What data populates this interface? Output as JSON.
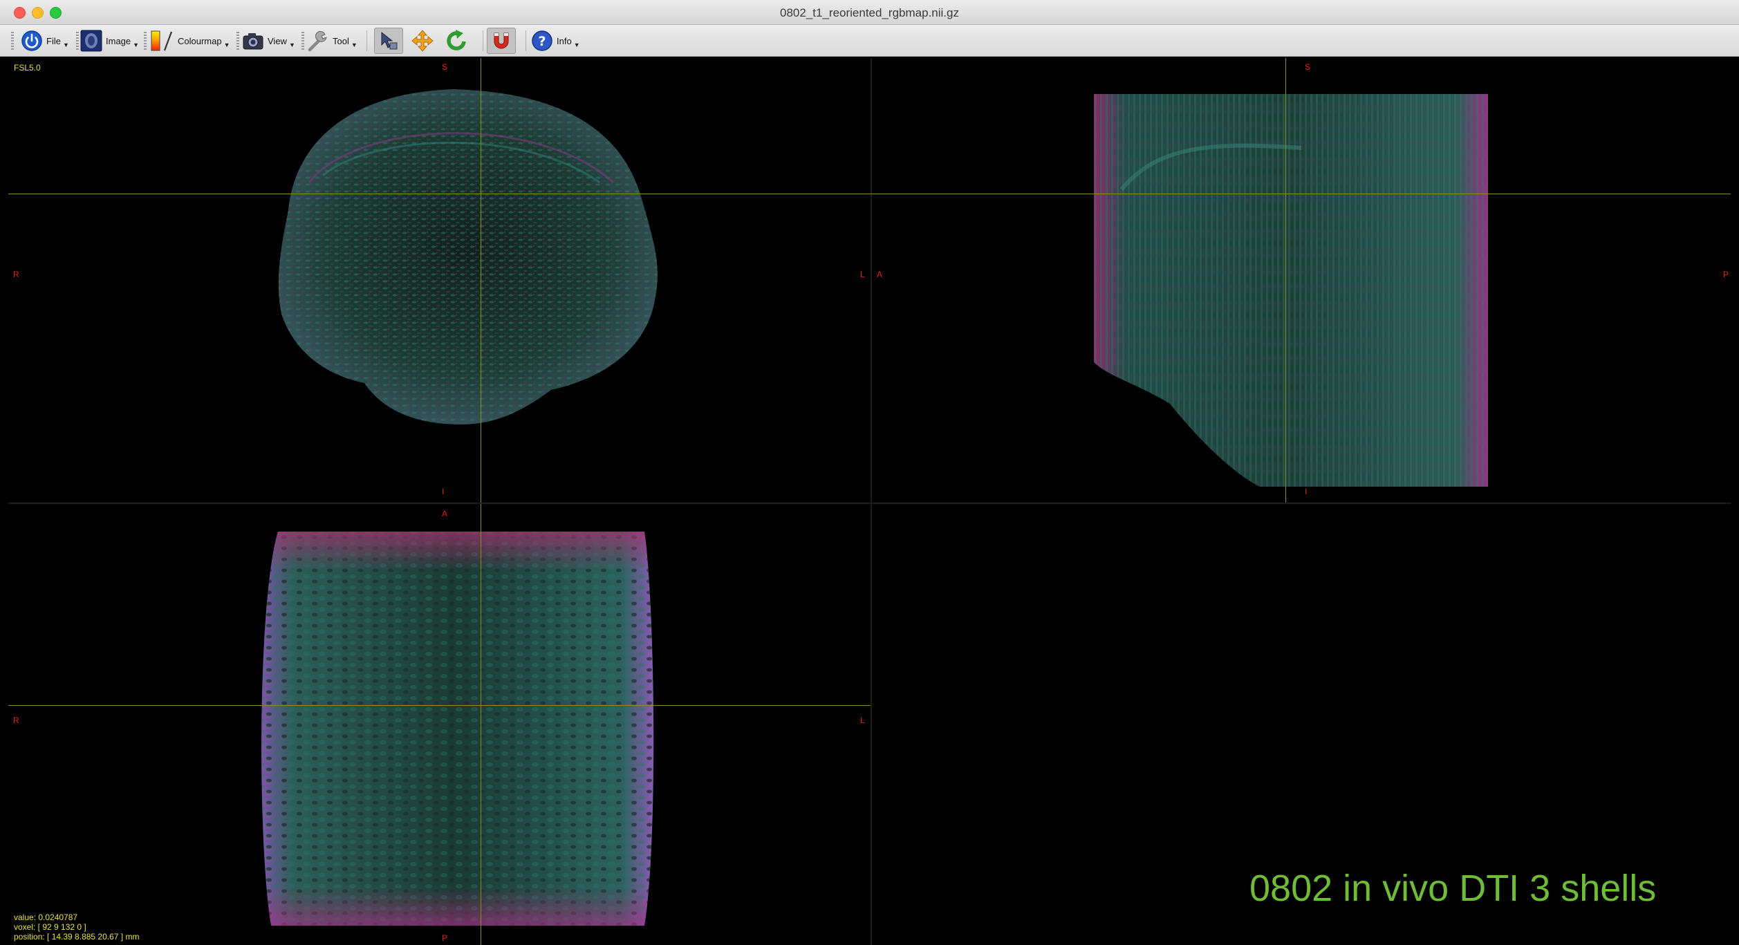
{
  "window": {
    "title": "0802_t1_reoriented_rgbmap.nii.gz"
  },
  "toolbar": {
    "file_label": "File",
    "image_label": "Image",
    "colourmap_label": "Colourmap",
    "view_label": "View",
    "tool_label": "Tool",
    "info_label": "Info"
  },
  "viewer": {
    "brand": "FSL5.0",
    "orientation": {
      "top_left": {
        "top": "S",
        "bottom": "I",
        "left": "R",
        "right": "L"
      },
      "top_right": {
        "top": "S",
        "bottom": "I",
        "left": "A",
        "right": "P"
      },
      "bottom_left": {
        "top": "A",
        "bottom": "P",
        "left": "R",
        "right": "L"
      }
    },
    "value_text": "value: 0.0240787",
    "voxel_text": "voxel: [ 92 9 132 0 ]",
    "position_text": "position: [ 14.39 8.885 20.67 ] mm",
    "watermark": "0802 in vivo DTI 3 shells"
  },
  "colors": {
    "crosshair": "#8b8f21",
    "orientation_label": "#e0221a",
    "info_text": "#e8e03c",
    "watermark": "#6fbc36"
  },
  "icons": [
    "power-icon",
    "image-icon",
    "colourmap-icon",
    "camera-icon",
    "wrench-icon",
    "cursor-mode-icon",
    "pan-icon",
    "reset-view-icon",
    "overlay-magnet-icon",
    "help-icon"
  ]
}
